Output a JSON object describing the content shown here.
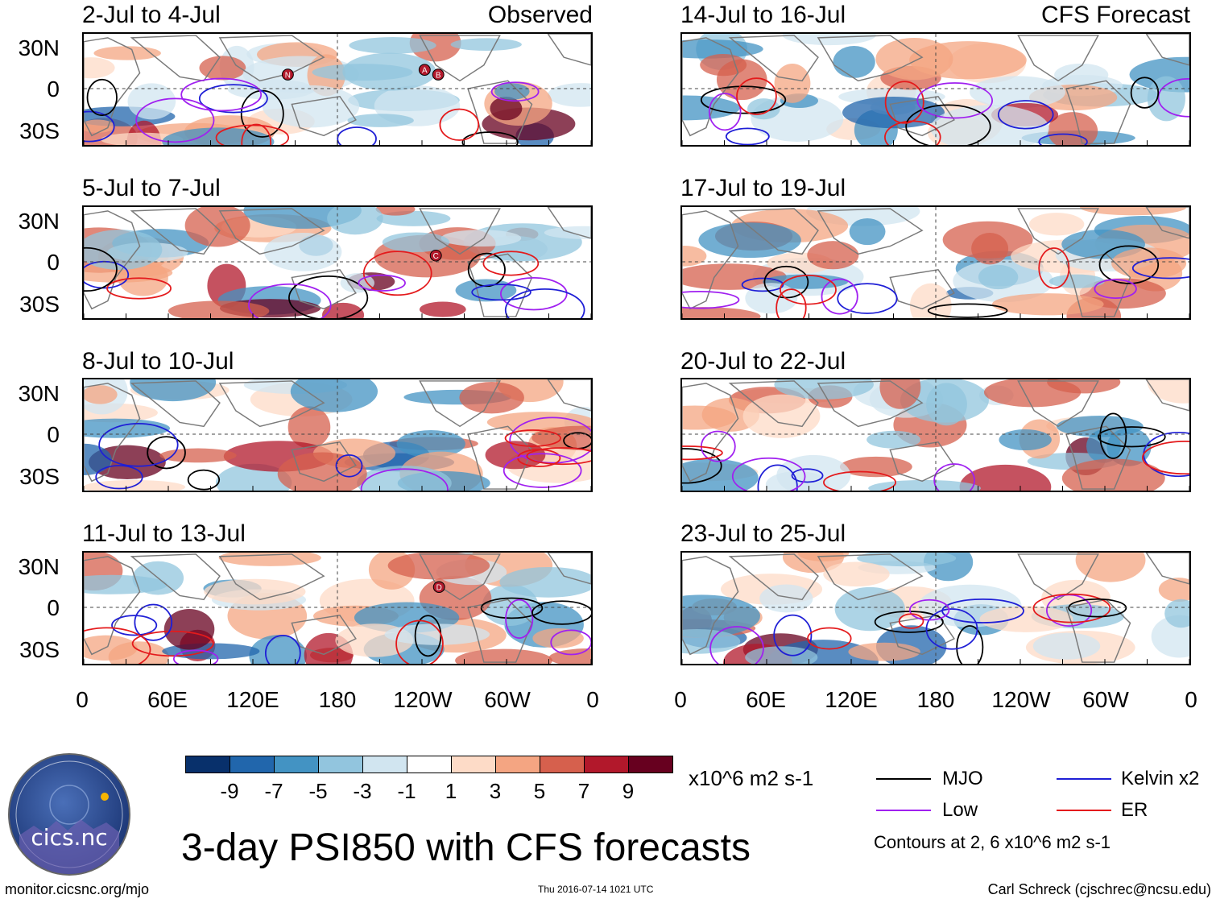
{
  "title": "3-day PSI850 with CFS forecasts",
  "panels_left": [
    {
      "label": "2-Jul to 4-Jul",
      "source": "Observed"
    },
    {
      "label": "5-Jul to 7-Jul",
      "source": ""
    },
    {
      "label": "8-Jul to 10-Jul",
      "source": ""
    },
    {
      "label": "11-Jul to 13-Jul",
      "source": ""
    }
  ],
  "panels_right": [
    {
      "label": "14-Jul to 16-Jul",
      "source": "CFS Forecast"
    },
    {
      "label": "17-Jul to 19-Jul",
      "source": ""
    },
    {
      "label": "20-Jul to 22-Jul",
      "source": ""
    },
    {
      "label": "23-Jul to 25-Jul",
      "source": ""
    }
  ],
  "lat_labels": [
    "30N",
    "0",
    "30S"
  ],
  "lon_labels": [
    "0",
    "60E",
    "120E",
    "180",
    "120W",
    "60W",
    "0"
  ],
  "storm_markers": {
    "panel1": [
      "N",
      "A",
      "B"
    ],
    "panel2": [
      "C"
    ],
    "panel4": [
      "D"
    ]
  },
  "colorbar": {
    "colors": [
      "#08306b",
      "#2166ac",
      "#4393c3",
      "#92c5de",
      "#d1e5f0",
      "#ffffff",
      "#fddbc7",
      "#f4a582",
      "#d6604d",
      "#b2182b",
      "#67001f"
    ],
    "labels": [
      "-9",
      "-7",
      "-5",
      "-3",
      "-1",
      "1",
      "3",
      "5",
      "7",
      "9"
    ],
    "units": "x10^6 m2 s-1"
  },
  "legend": [
    {
      "label": "MJO",
      "color": "#000000"
    },
    {
      "label": "Kelvin x2",
      "color": "#1f1fd6"
    },
    {
      "label": "Low",
      "color": "#a020f0"
    },
    {
      "label": "ER",
      "color": "#e41a1c"
    }
  ],
  "contour_note": "Contours at 2, 6 x10^6 m2 s-1",
  "logo_text": "cics.nc",
  "footer": {
    "url": "monitor.cicsnc.org/mjo",
    "date": "Thu 2016-07-14 1021 UTC",
    "author": "Carl Schreck (cjschrec@ncsu.edu)"
  }
}
